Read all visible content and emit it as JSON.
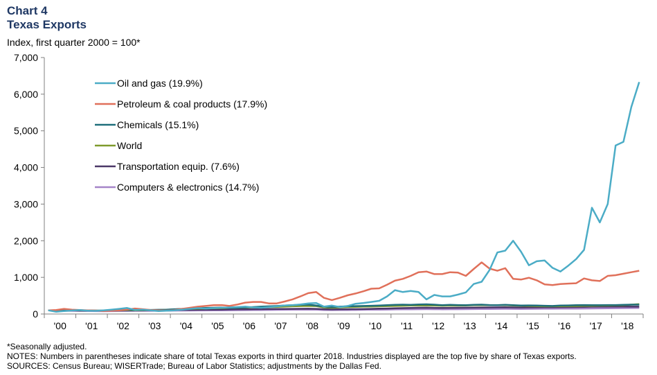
{
  "header": {
    "chart_label": "Chart 4",
    "title": "Texas Exports",
    "subtitle": "Index, first quarter 2000 = 100*"
  },
  "footnotes": {
    "seasonal": "*Seasonally adjusted.",
    "notes": "NOTES: Numbers in parentheses indicate share of total Texas exports in third quarter 2018. Industries displayed are the top five by share of Texas exports.",
    "sources": "SOURCES: Census Bureau; WISERTrade; Bureau of Labor Statistics; adjustments by the Dallas Fed."
  },
  "chart_data": {
    "type": "line",
    "title": "Texas Exports",
    "ylabel": "Index, first quarter 2000 = 100*",
    "ylim": [
      0,
      7000
    ],
    "yticks": [
      0,
      1000,
      2000,
      3000,
      4000,
      5000,
      6000,
      7000
    ],
    "ytick_labels": [
      "0",
      "1,000",
      "2,000",
      "3,000",
      "4,000",
      "5,000",
      "6,000",
      "7,000"
    ],
    "xtick_labels": [
      "'00",
      "'01",
      "'02",
      "'03",
      "'04",
      "'05",
      "'06",
      "'07",
      "'08",
      "'09",
      "'10",
      "'11",
      "'12",
      "'13",
      "'14",
      "'15",
      "'16",
      "'17",
      "'18"
    ],
    "x_start_year": 2000,
    "points_per_year": 4,
    "legend_position": "upper-left",
    "grid": false,
    "series": [
      {
        "name": "Oil and gas (19.9%)",
        "color": "#4bacc6",
        "values": [
          100,
          60,
          80,
          95,
          110,
          90,
          85,
          100,
          120,
          140,
          165,
          110,
          120,
          100,
          80,
          90,
          100,
          120,
          140,
          160,
          150,
          160,
          170,
          180,
          190,
          200,
          180,
          170,
          190,
          210,
          230,
          240,
          260,
          290,
          300,
          200,
          230,
          190,
          220,
          280,
          300,
          330,
          360,
          480,
          650,
          600,
          630,
          600,
          400,
          520,
          480,
          480,
          530,
          590,
          820,
          880,
          1200,
          1680,
          1730,
          2000,
          1700,
          1330,
          1440,
          1460,
          1260,
          1160,
          1320,
          1500,
          1750,
          2900,
          2500,
          3000,
          4600,
          4700,
          5650,
          6330
        ]
      },
      {
        "name": "Petroleum & coal products (17.9%)",
        "color": "#e0705a",
        "values": [
          100,
          110,
          140,
          120,
          110,
          100,
          95,
          80,
          90,
          100,
          120,
          150,
          130,
          110,
          100,
          95,
          110,
          140,
          170,
          200,
          220,
          240,
          245,
          220,
          260,
          310,
          330,
          330,
          290,
          290,
          340,
          400,
          480,
          570,
          600,
          440,
          380,
          440,
          510,
          560,
          620,
          690,
          700,
          800,
          910,
          960,
          1040,
          1140,
          1160,
          1090,
          1090,
          1140,
          1130,
          1040,
          1230,
          1410,
          1240,
          1180,
          1250,
          960,
          940,
          990,
          920,
          810,
          790,
          820,
          830,
          840,
          970,
          920,
          900,
          1040,
          1060,
          1100,
          1140,
          1180
        ]
      },
      {
        "name": "Chemicals (15.1%)",
        "color": "#1f6e7a",
        "values": [
          100,
          100,
          105,
          102,
          98,
          95,
          92,
          90,
          95,
          100,
          105,
          108,
          110,
          112,
          115,
          120,
          130,
          140,
          150,
          160,
          165,
          170,
          175,
          165,
          170,
          180,
          190,
          200,
          210,
          220,
          230,
          240,
          250,
          255,
          230,
          200,
          190,
          200,
          210,
          215,
          220,
          225,
          230,
          240,
          250,
          255,
          250,
          260,
          265,
          255,
          240,
          250,
          245,
          240,
          250,
          255,
          245,
          240,
          250,
          240,
          230,
          235,
          230,
          225,
          220,
          230,
          235,
          240,
          245,
          240,
          240,
          245,
          245,
          250,
          255,
          255
        ]
      },
      {
        "name": "World",
        "color": "#7f9a2c",
        "values": [
          100,
          100,
          102,
          98,
          96,
          94,
          93,
          92,
          94,
          96,
          98,
          100,
          102,
          105,
          108,
          115,
          125,
          135,
          140,
          145,
          150,
          155,
          160,
          165,
          170,
          175,
          180,
          185,
          190,
          195,
          200,
          210,
          215,
          220,
          215,
          180,
          170,
          180,
          190,
          195,
          200,
          205,
          210,
          215,
          220,
          225,
          230,
          232,
          235,
          230,
          225,
          230,
          228,
          232,
          240,
          245,
          242,
          240,
          245,
          230,
          225,
          220,
          215,
          210,
          210,
          212,
          215,
          218,
          222,
          225,
          228,
          232,
          236,
          240,
          255,
          270
        ]
      },
      {
        "name": "Transportation equip. (7.6%)",
        "color": "#4a3767",
        "values": [
          100,
          100,
          100,
          98,
          96,
          94,
          92,
          92,
          94,
          96,
          98,
          100,
          100,
          102,
          104,
          108,
          110,
          112,
          114,
          116,
          118,
          120,
          122,
          124,
          126,
          128,
          130,
          132,
          134,
          136,
          138,
          140,
          142,
          144,
          140,
          130,
          125,
          128,
          130,
          132,
          135,
          140,
          145,
          150,
          155,
          160,
          165,
          170,
          172,
          168,
          165,
          168,
          170,
          172,
          175,
          178,
          180,
          182,
          185,
          180,
          178,
          180,
          182,
          184,
          186,
          188,
          190,
          192,
          195,
          198,
          200,
          202,
          205,
          205,
          200,
          200
        ]
      },
      {
        "name": "Computers & electronics (14.7%)",
        "color": "#a584c8",
        "values": [
          100,
          95,
          90,
          85,
          82,
          80,
          78,
          76,
          78,
          80,
          82,
          84,
          85,
          86,
          88,
          90,
          92,
          94,
          95,
          96,
          97,
          98,
          100,
          102,
          104,
          106,
          108,
          110,
          112,
          114,
          116,
          118,
          120,
          121,
          118,
          110,
          105,
          108,
          110,
          112,
          115,
          118,
          120,
          122,
          124,
          126,
          128,
          130,
          132,
          130,
          128,
          130,
          131,
          132,
          134,
          136,
          138,
          140,
          142,
          140,
          138,
          140,
          142,
          143,
          144,
          145,
          146,
          148,
          150,
          152,
          154,
          156,
          158,
          160,
          162,
          164
        ]
      }
    ]
  }
}
